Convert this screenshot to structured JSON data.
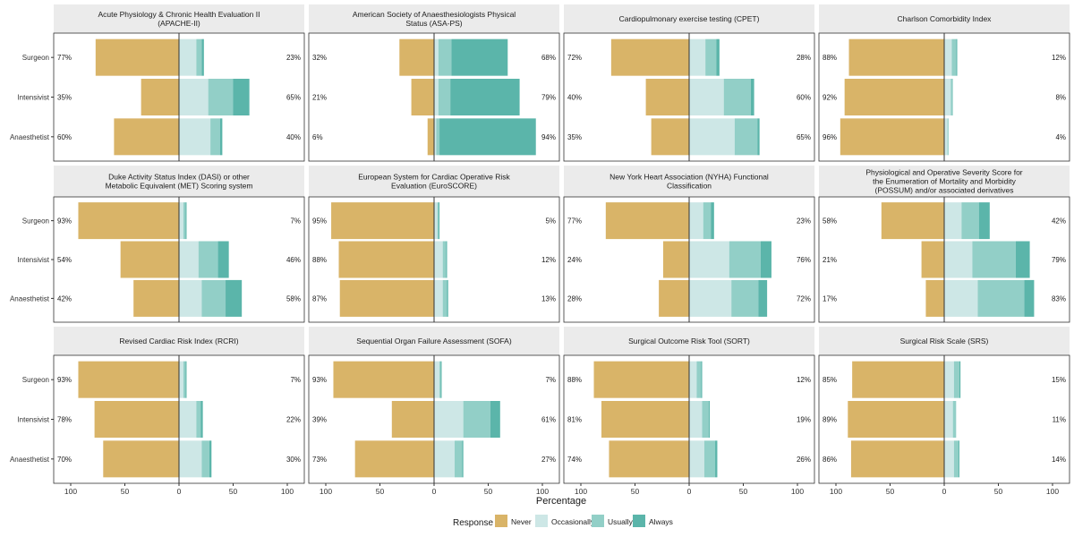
{
  "chart_data": {
    "type": "bar",
    "subtype": "diverging-stacked-horizontal-faceted",
    "xlabel": "Percentage",
    "x_ticks": [
      "100",
      "50",
      "0",
      "50",
      "100"
    ],
    "xlim": [
      -100,
      100
    ],
    "categories": [
      "Surgeon",
      "Intensivist",
      "Anaesthetist"
    ],
    "legend": {
      "title": "Response",
      "position": "bottom",
      "items": [
        {
          "name": "Never",
          "color": "#D9B468"
        },
        {
          "name": "Occasionally",
          "color": "#CDE7E6"
        },
        {
          "name": "Usually",
          "color": "#92CFC7"
        },
        {
          "name": "Always",
          "color": "#5BB5AA"
        }
      ]
    },
    "panels": [
      {
        "title": "Acute Physiology & Chronic Health Evaluation II\n(APACHE-II)",
        "rows": [
          {
            "group": "Surgeon",
            "never": 77,
            "occasionally": 16,
            "usually": 5,
            "always": 2,
            "left_label": "77%",
            "right_label": "23%"
          },
          {
            "group": "Intensivist",
            "never": 35,
            "occasionally": 27,
            "usually": 23,
            "always": 15,
            "left_label": "35%",
            "right_label": "65%"
          },
          {
            "group": "Anaesthetist",
            "never": 60,
            "occasionally": 29,
            "usually": 9,
            "always": 2,
            "left_label": "60%",
            "right_label": "40%"
          }
        ]
      },
      {
        "title": "American Society of Anaesthesiologists Physical\nStatus (ASA-PS)",
        "rows": [
          {
            "group": "Surgeon",
            "never": 32,
            "occasionally": 4,
            "usually": 12,
            "always": 52,
            "left_label": "32%",
            "right_label": "68%"
          },
          {
            "group": "Intensivist",
            "never": 21,
            "occasionally": 4,
            "usually": 11,
            "always": 64,
            "left_label": "21%",
            "right_label": "79%"
          },
          {
            "group": "Anaesthetist",
            "never": 6,
            "occasionally": 2,
            "usually": 3,
            "always": 89,
            "left_label": "6%",
            "right_label": "94%"
          }
        ]
      },
      {
        "title": "Cardiopulmonary exercise testing (CPET)",
        "rows": [
          {
            "group": "Surgeon",
            "never": 72,
            "occasionally": 15,
            "usually": 10,
            "always": 3,
            "left_label": "72%",
            "right_label": "28%"
          },
          {
            "group": "Intensivist",
            "never": 40,
            "occasionally": 32,
            "usually": 25,
            "always": 3,
            "left_label": "40%",
            "right_label": "60%"
          },
          {
            "group": "Anaesthetist",
            "never": 35,
            "occasionally": 42,
            "usually": 21,
            "always": 2,
            "left_label": "35%",
            "right_label": "65%"
          }
        ]
      },
      {
        "title": "Charlson Comorbidity Index",
        "rows": [
          {
            "group": "Surgeon",
            "never": 88,
            "occasionally": 7,
            "usually": 4,
            "always": 1,
            "left_label": "88%",
            "right_label": "12%"
          },
          {
            "group": "Intensivist",
            "never": 92,
            "occasionally": 6,
            "usually": 2,
            "always": 0,
            "left_label": "92%",
            "right_label": "8%"
          },
          {
            "group": "Anaesthetist",
            "never": 96,
            "occasionally": 3,
            "usually": 1,
            "always": 0,
            "left_label": "96%",
            "right_label": "4%"
          }
        ]
      },
      {
        "title": "Duke Activity Status Index (DASI) or other\nMetabolic Equivalent (MET) Scoring system",
        "rows": [
          {
            "group": "Surgeon",
            "never": 93,
            "occasionally": 4,
            "usually": 2,
            "always": 1,
            "left_label": "93%",
            "right_label": "7%"
          },
          {
            "group": "Intensivist",
            "never": 54,
            "occasionally": 18,
            "usually": 18,
            "always": 10,
            "left_label": "54%",
            "right_label": "46%"
          },
          {
            "group": "Anaesthetist",
            "never": 42,
            "occasionally": 21,
            "usually": 22,
            "always": 15,
            "left_label": "42%",
            "right_label": "58%"
          }
        ]
      },
      {
        "title": "European System for Cardiac Operative Risk\nEvaluation (EuroSCORE)",
        "rows": [
          {
            "group": "Surgeon",
            "never": 95,
            "occasionally": 3,
            "usually": 1,
            "always": 1,
            "left_label": "95%",
            "right_label": "5%"
          },
          {
            "group": "Intensivist",
            "never": 88,
            "occasionally": 8,
            "usually": 3,
            "always": 1,
            "left_label": "88%",
            "right_label": "12%"
          },
          {
            "group": "Anaesthetist",
            "never": 87,
            "occasionally": 8,
            "usually": 4,
            "always": 1,
            "left_label": "87%",
            "right_label": "13%"
          }
        ]
      },
      {
        "title": "New York Heart Association (NYHA) Functional\nClassification",
        "rows": [
          {
            "group": "Surgeon",
            "never": 77,
            "occasionally": 13,
            "usually": 7,
            "always": 3,
            "left_label": "77%",
            "right_label": "23%"
          },
          {
            "group": "Intensivist",
            "never": 24,
            "occasionally": 37,
            "usually": 29,
            "always": 10,
            "left_label": "24%",
            "right_label": "76%"
          },
          {
            "group": "Anaesthetist",
            "never": 28,
            "occasionally": 39,
            "usually": 25,
            "always": 8,
            "left_label": "28%",
            "right_label": "72%"
          }
        ]
      },
      {
        "title": "Physiological and Operative Severity Score for\nthe Enumeration of Mortality and Morbidity\n(POSSUM) and/or associated derivatives",
        "rows": [
          {
            "group": "Surgeon",
            "never": 58,
            "occasionally": 16,
            "usually": 16,
            "always": 10,
            "left_label": "58%",
            "right_label": "42%"
          },
          {
            "group": "Intensivist",
            "never": 21,
            "occasionally": 26,
            "usually": 40,
            "always": 13,
            "left_label": "21%",
            "right_label": "79%"
          },
          {
            "group": "Anaesthetist",
            "never": 17,
            "occasionally": 31,
            "usually": 43,
            "always": 9,
            "left_label": "17%",
            "right_label": "83%"
          }
        ]
      },
      {
        "title": "Revised Cardiac Risk Index (RCRI)",
        "rows": [
          {
            "group": "Surgeon",
            "never": 93,
            "occasionally": 4,
            "usually": 2,
            "always": 1,
            "left_label": "93%",
            "right_label": "7%"
          },
          {
            "group": "Intensivist",
            "never": 78,
            "occasionally": 16,
            "usually": 4,
            "always": 2,
            "left_label": "78%",
            "right_label": "22%"
          },
          {
            "group": "Anaesthetist",
            "never": 70,
            "occasionally": 21,
            "usually": 7,
            "always": 2,
            "left_label": "70%",
            "right_label": "30%"
          }
        ]
      },
      {
        "title": "Sequential Organ Failure Assessment (SOFA)",
        "rows": [
          {
            "group": "Surgeon",
            "never": 93,
            "occasionally": 5,
            "usually": 1,
            "always": 1,
            "left_label": "93%",
            "right_label": "7%"
          },
          {
            "group": "Intensivist",
            "never": 39,
            "occasionally": 27,
            "usually": 25,
            "always": 9,
            "left_label": "39%",
            "right_label": "61%"
          },
          {
            "group": "Anaesthetist",
            "never": 73,
            "occasionally": 19,
            "usually": 7,
            "always": 1,
            "left_label": "73%",
            "right_label": "27%"
          }
        ]
      },
      {
        "title": "Surgical Outcome Risk Tool (SORT)",
        "rows": [
          {
            "group": "Surgeon",
            "never": 88,
            "occasionally": 7,
            "usually": 4,
            "always": 1,
            "left_label": "88%",
            "right_label": "12%"
          },
          {
            "group": "Intensivist",
            "never": 81,
            "occasionally": 12,
            "usually": 6,
            "always": 1,
            "left_label": "81%",
            "right_label": "19%"
          },
          {
            "group": "Anaesthetist",
            "never": 74,
            "occasionally": 14,
            "usually": 10,
            "always": 2,
            "left_label": "74%",
            "right_label": "26%"
          }
        ]
      },
      {
        "title": "Surgical Risk Scale (SRS)",
        "rows": [
          {
            "group": "Surgeon",
            "never": 85,
            "occasionally": 9,
            "usually": 5,
            "always": 1,
            "left_label": "85%",
            "right_label": "15%"
          },
          {
            "group": "Intensivist",
            "never": 89,
            "occasionally": 8,
            "usually": 3,
            "always": 0,
            "left_label": "89%",
            "right_label": "11%"
          },
          {
            "group": "Anaesthetist",
            "never": 86,
            "occasionally": 9,
            "usually": 4,
            "always": 1,
            "left_label": "86%",
            "right_label": "14%"
          }
        ]
      }
    ]
  }
}
